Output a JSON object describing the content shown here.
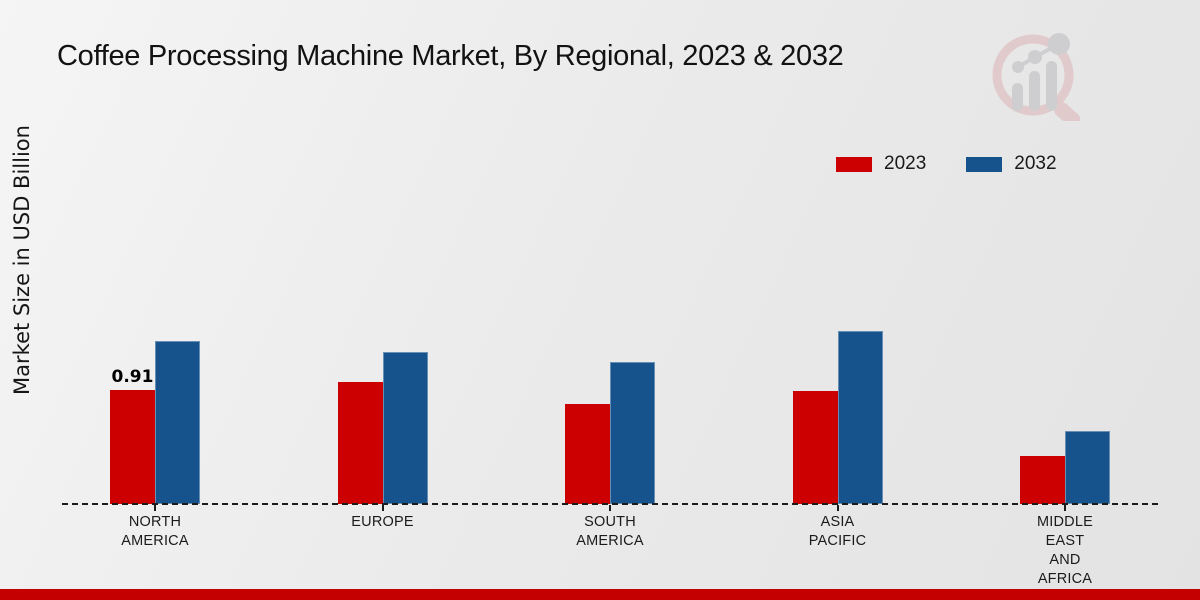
{
  "page": {
    "title": "Coffee Processing Machine Market, By Regional, 2023 & 2032",
    "footer_accent_color": "#C40000",
    "background_color": "#EBEBEB",
    "logo_icon": "magnifier-bar-chart-logo"
  },
  "legend": {
    "position": "top-right",
    "items": [
      {
        "label": "2023",
        "color": "#CC0000"
      },
      {
        "label": "2032",
        "color": "#16538C"
      }
    ]
  },
  "chart_data": {
    "type": "bar",
    "title": "Coffee Processing Machine Market, By Regional, 2023 & 2032",
    "xlabel": "",
    "ylabel": "Market Size in USD Billion",
    "categories": [
      "NORTH AMERICA",
      "EUROPE",
      "SOUTH AMERICA",
      "ASIA PACIFIC",
      "MIDDLE EAST AND AFRICA"
    ],
    "series": [
      {
        "name": "2023",
        "color": "#CC0000",
        "values": [
          0.91,
          0.97,
          0.8,
          0.9,
          0.38
        ]
      },
      {
        "name": "2032",
        "color": "#16538C",
        "values": [
          1.3,
          1.21,
          1.13,
          1.38,
          0.58
        ]
      }
    ],
    "data_labels": [
      {
        "series_index": 0,
        "category_index": 0,
        "text": "0.91"
      }
    ],
    "ylim": [
      0,
      1.55
    ],
    "grid": false,
    "y_axis_ticks_visible": false,
    "baseline_style": "dashed",
    "legend_position": "top-right"
  }
}
